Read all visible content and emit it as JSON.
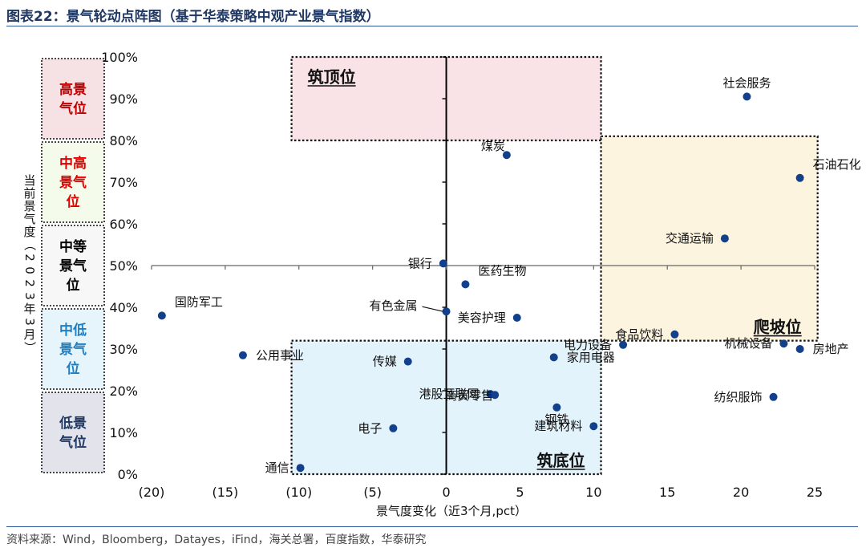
{
  "figure_title": "图表22：景气轮动点阵图（基于华泰策略中观产业景气指数）",
  "source_note": "资料来源：Wind，Bloomberg，Datayes，iFind，海关总署，百度指数，华泰研究",
  "colors": {
    "point": "#12408b",
    "title": "#1f3864",
    "rule": "#2e5597",
    "zone_top_fill": "#f9e3e7",
    "zone_bottom_fill": "#e3f3fb",
    "zone_climb_fill": "#fcf4de",
    "band_high_fill": "#f6e1e4",
    "band_midhigh_fill": "#f4fbea",
    "band_mid_fill": "#f7f7f7",
    "band_midlow_fill": "#e6f4fb",
    "band_low_fill": "#e3e3ec",
    "band_high_text": "#c00000",
    "band_midhigh_text": "#e00000",
    "band_mid_text": "#000000",
    "band_midlow_text": "#1f7fc0",
    "band_low_text": "#1f3864"
  },
  "bands": [
    {
      "label": "高景气位",
      "lines": [
        "高景",
        "气位"
      ],
      "y_min": 80,
      "y_max": 100,
      "fill_key": "band_high_fill",
      "text_key": "band_high_text"
    },
    {
      "label": "中高景气位",
      "lines": [
        "中高",
        "景气",
        "位"
      ],
      "y_min": 60,
      "y_max": 80,
      "fill_key": "band_midhigh_fill",
      "text_key": "band_midhigh_text"
    },
    {
      "label": "中等景气位",
      "lines": [
        "中等",
        "景气",
        "位"
      ],
      "y_min": 40,
      "y_max": 60,
      "fill_key": "band_mid_fill",
      "text_key": "band_mid_text"
    },
    {
      "label": "中低景气位",
      "lines": [
        "中低",
        "景气",
        "位"
      ],
      "y_min": 20,
      "y_max": 40,
      "fill_key": "band_midlow_fill",
      "text_key": "band_midlow_text"
    },
    {
      "label": "低景气位",
      "lines": [
        "低景",
        "气位"
      ],
      "y_min": 0,
      "y_max": 20,
      "fill_key": "band_low_fill",
      "text_key": "band_low_text"
    }
  ],
  "zones": [
    {
      "label": "筑顶位",
      "x_min": -10.5,
      "x_max": 10.5,
      "y_min": 80,
      "y_max": 100,
      "fill_key": "zone_top_fill",
      "label_corner": "top-left"
    },
    {
      "label": "爬坡位",
      "x_min": 10.5,
      "x_max": 25.2,
      "y_min": 32,
      "y_max": 81,
      "fill_key": "zone_climb_fill",
      "label_corner": "bottom-right"
    },
    {
      "label": "筑底位",
      "x_min": -10.5,
      "x_max": 10.5,
      "y_min": 0,
      "y_max": 32,
      "fill_key": "zone_bottom_fill",
      "label_corner": "bottom-right"
    }
  ],
  "chart_data": {
    "type": "scatter",
    "title": "",
    "xlabel": "景气度变化（近3个月,pct）",
    "ylabel": "当前景气度（2023年3月）",
    "xlim": [
      -20,
      25
    ],
    "ylim": [
      0,
      100
    ],
    "x_ticks": [
      -20,
      -15,
      -10,
      -5,
      0,
      5,
      10,
      15,
      20,
      25
    ],
    "x_tick_labels": [
      "(20)",
      "(15)",
      "(10)",
      "(5)",
      "0",
      "5",
      "10",
      "15",
      "20",
      "25"
    ],
    "y_ticks": [
      0,
      10,
      20,
      30,
      40,
      50,
      60,
      70,
      80,
      90,
      100
    ],
    "y_tick_labels": [
      "0%",
      "10%",
      "20%",
      "30%",
      "40%",
      "50%",
      "60%",
      "70%",
      "80%",
      "90%",
      "100%"
    ],
    "axes_cross": {
      "x": 0,
      "y": 50
    },
    "points": [
      {
        "name": "社会服务",
        "x": 20.4,
        "y": 90.5,
        "label_pos": "above"
      },
      {
        "name": "煤炭",
        "x": 4.1,
        "y": 76.5,
        "label_pos": "above-left"
      },
      {
        "name": "石油石化",
        "x": 24.0,
        "y": 71.0,
        "label_pos": "above-right"
      },
      {
        "name": "交通运输",
        "x": 18.9,
        "y": 56.5,
        "label_pos": "left"
      },
      {
        "name": "银行",
        "x": -0.2,
        "y": 50.5,
        "label_pos": "left"
      },
      {
        "name": "医药生物",
        "x": 1.3,
        "y": 45.5,
        "label_pos": "above-right"
      },
      {
        "name": "国防军工",
        "x": -19.3,
        "y": 38.0,
        "label_pos": "above-right"
      },
      {
        "name": "有色金属",
        "x": 0.0,
        "y": 39.0,
        "label_pos": "left-leader"
      },
      {
        "name": "美容护理",
        "x": 4.8,
        "y": 37.5,
        "label_pos": "left"
      },
      {
        "name": "食品饮料",
        "x": 15.5,
        "y": 33.5,
        "label_pos": "left"
      },
      {
        "name": "电力设备",
        "x": 12.0,
        "y": 31.0,
        "label_pos": "left"
      },
      {
        "name": "机械设备",
        "x": 22.9,
        "y": 31.3,
        "label_pos": "left"
      },
      {
        "name": "房地产",
        "x": 24.0,
        "y": 30.0,
        "label_pos": "right"
      },
      {
        "name": "公用事业",
        "x": -13.8,
        "y": 28.5,
        "label_pos": "right"
      },
      {
        "name": "家用电器",
        "x": 7.3,
        "y": 28.0,
        "label_pos": "right"
      },
      {
        "name": "传媒",
        "x": -2.6,
        "y": 27.0,
        "label_pos": "left"
      },
      {
        "name": "港股互联网",
        "x": 3.0,
        "y": 19.2,
        "label_pos": "left"
      },
      {
        "name": "商贸零售",
        "x": 3.3,
        "y": 19.0,
        "label_pos": "below-right"
      },
      {
        "name": "纺织服饰",
        "x": 22.2,
        "y": 18.5,
        "label_pos": "left"
      },
      {
        "name": "钢铁",
        "x": 7.5,
        "y": 16.0,
        "label_pos": "below"
      },
      {
        "name": "建筑材料",
        "x": 10.0,
        "y": 11.5,
        "label_pos": "left"
      },
      {
        "name": "电子",
        "x": -3.6,
        "y": 11.0,
        "label_pos": "left"
      },
      {
        "name": "通信",
        "x": -9.9,
        "y": 1.5,
        "label_pos": "left"
      }
    ]
  }
}
